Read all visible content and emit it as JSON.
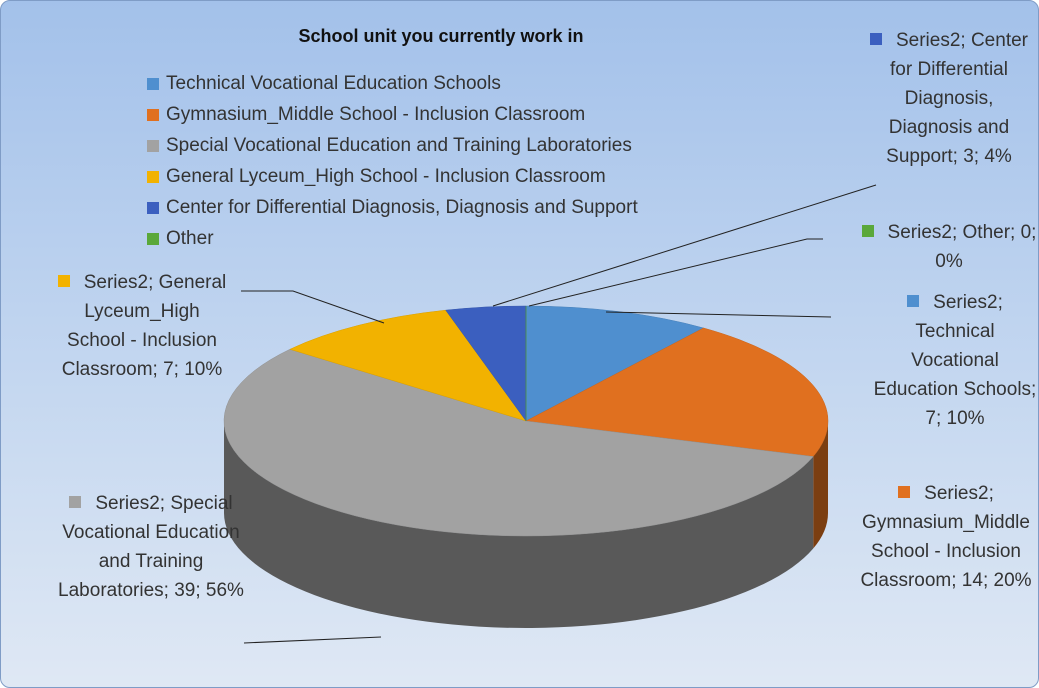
{
  "chart_data": {
    "type": "pie",
    "title": "School unit you currently work in",
    "categories": [
      "Technical Vocational Education Schools",
      "Gymnasium_Middle School -  Inclusion Classroom",
      "Special Vocational Education and Training Laboratories",
      "General Lyceum_High School -  Inclusion Classroom",
      "Center for Differential Diagnosis, Diagnosis and Support",
      "Other"
    ],
    "values": [
      7,
      14,
      39,
      7,
      3,
      0
    ],
    "value_labels": [
      "Series2; Technical Vocational Education Schools; 7; 10%",
      "Series2; Gymnasium_Middle School -  Inclusion Classroom; 14; 20%",
      "Series2; Special Vocational Education and Training Laboratories; 39; 56%",
      "Series2; General Lyceum_High School -  Inclusion Classroom; 7; 10%",
      "Series2; Center for Differential Diagnosis, Diagnosis and Support; 3; 4%",
      "Series2; Other; 0; 0%"
    ],
    "colors": [
      "#4f8fcf",
      "#e0701f",
      "#a2a2a2",
      "#f2b200",
      "#3b5fbf",
      "#5aa83a"
    ]
  }
}
